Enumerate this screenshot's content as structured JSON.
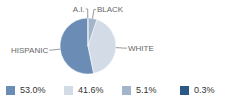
{
  "chart_data": {
    "type": "pie",
    "categories": [
      "HISPANIC",
      "WHITE",
      "BLACK",
      "A.I."
    ],
    "values": [
      53.0,
      41.6,
      5.1,
      0.3
    ],
    "value_labels": [
      "53.0%",
      "41.6%",
      "5.1%",
      "0.3%"
    ],
    "colors": [
      "#6b8db5",
      "#d3dce6",
      "#a3b5ca",
      "#2b5985"
    ]
  }
}
